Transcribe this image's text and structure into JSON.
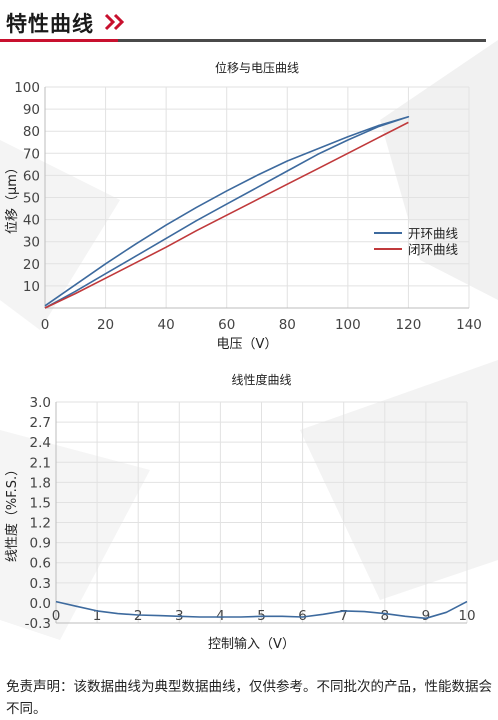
{
  "header": {
    "title": "特性曲线"
  },
  "chart_data": [
    {
      "type": "line",
      "title": "位移与电压曲线",
      "xlabel": "电压（V）",
      "ylabel": "位移（μm）",
      "xlim": [
        0,
        140
      ],
      "ylim": [
        0,
        100
      ],
      "xticks": [
        0,
        20,
        40,
        60,
        80,
        100,
        120,
        140
      ],
      "yticks": [
        10,
        20,
        30,
        40,
        50,
        60,
        70,
        80,
        90,
        100
      ],
      "grid": true,
      "legend": "right",
      "series": [
        {
          "name": "开环曲线",
          "color": "#3d6a9e",
          "x": [
            0,
            10,
            20,
            30,
            40,
            50,
            60,
            70,
            80,
            90,
            100,
            110,
            120,
            110,
            100,
            90,
            80,
            70,
            60,
            50,
            40,
            30,
            20,
            10,
            0
          ],
          "y": [
            1,
            10.5,
            20,
            29,
            37.5,
            45.5,
            53,
            60,
            66.5,
            72,
            77.5,
            82.5,
            86.5,
            82,
            76,
            69.5,
            62,
            54.5,
            47,
            39.5,
            31.5,
            23.5,
            15.5,
            7.5,
            0
          ]
        },
        {
          "name": "闭环曲线",
          "color": "#c0393b",
          "x": [
            0,
            10,
            20,
            30,
            40,
            50,
            60,
            70,
            80,
            90,
            100,
            110,
            120
          ],
          "y": [
            0,
            6.5,
            13.5,
            20.5,
            27.5,
            35,
            42,
            49,
            56,
            63,
            70,
            77,
            84
          ]
        }
      ]
    },
    {
      "type": "line",
      "title": "线性度曲线",
      "xlabel": "控制输入（V）",
      "ylabel": "线性度（%F.S.）",
      "xlim": [
        0,
        10
      ],
      "ylim": [
        -0.3,
        3.0
      ],
      "xticks": [
        0,
        1,
        2,
        3,
        4,
        5,
        6,
        7,
        8,
        9,
        10
      ],
      "yticks": [
        -0.3,
        0.0,
        0.3,
        0.6,
        0.9,
        1.2,
        1.5,
        1.8,
        2.1,
        2.4,
        2.7,
        3.0
      ],
      "yticklabels": [
        "-0.3",
        "0.0",
        "0.3",
        "0.6",
        "0.9",
        "1.2",
        "1.5",
        "1.8",
        "2.1",
        "2.4",
        "2.7",
        "3.0"
      ],
      "grid": true,
      "series": [
        {
          "color": "#3d6a9e",
          "x": [
            0,
            0.5,
            1,
            1.5,
            2,
            2.5,
            3,
            3.5,
            4,
            4.5,
            5,
            5.5,
            6,
            6.5,
            7,
            7.5,
            8,
            8.5,
            9,
            9.5,
            10
          ],
          "y": [
            0.02,
            -0.05,
            -0.12,
            -0.16,
            -0.18,
            -0.19,
            -0.2,
            -0.21,
            -0.21,
            -0.21,
            -0.2,
            -0.2,
            -0.21,
            -0.17,
            -0.12,
            -0.13,
            -0.16,
            -0.2,
            -0.23,
            -0.14,
            0.02
          ]
        }
      ]
    }
  ],
  "disclaimer": "免责声明：该数据曲线为典型数据曲线，仅供参考。不同批次的产品，性能数据会不同。"
}
